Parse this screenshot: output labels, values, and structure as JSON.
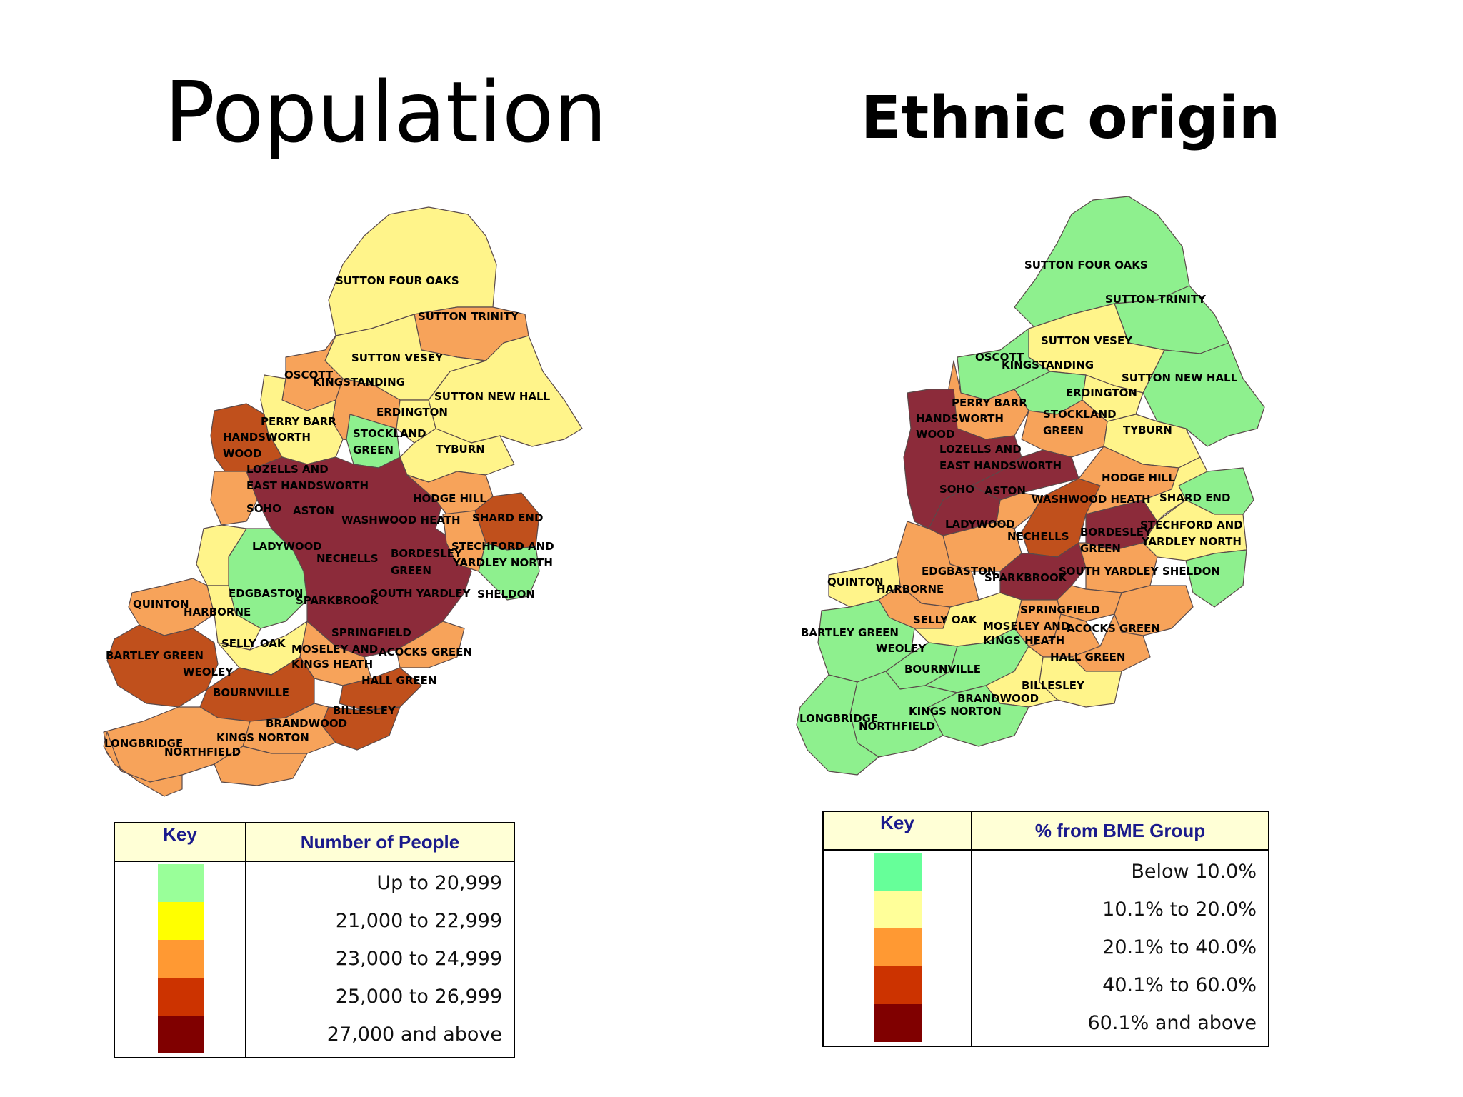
{
  "titles": {
    "left": "Population",
    "right": "Ethnic origin"
  },
  "colors": {
    "green": "#8ef08e",
    "yellow": "#fff48a",
    "orange": "#f7a35a",
    "red": "#c0501c",
    "maroon": "#8c2b3a",
    "label_ink": "#000000",
    "legend_header_bg": "#ffffd6",
    "legend_header_ink": "#1a1a8c"
  },
  "population_map": {
    "labels": {
      "sutton_four_oaks": "SUTTON FOUR OAKS",
      "sutton_trinity": "SUTTON TRINITY",
      "sutton_vesey": "SUTTON VESEY",
      "oscott": "OSCOTT",
      "kingstanding": "KINGSTANDING",
      "sutton_new_hall": "SUTTON NEW HALL",
      "erdington": "ERDINGTON",
      "perry_barr": "PERRY BARR",
      "handsworth": "HANDSWORTH",
      "wood": "WOOD",
      "stockland": "STOCKLAND",
      "green": "GREEN",
      "tyburn": "TYBURN",
      "lozells_and": "LOZELLS AND",
      "east_handsworth": "EAST HANDSWORTH",
      "hodge_hill": "HODGE HILL",
      "soho": "SOHO",
      "aston": "ASTON",
      "washwood_heath": "WASHWOOD HEATH",
      "shard_end": "SHARD END",
      "stechford_and": "STECHFORD AND",
      "ladywood": "LADYWOOD",
      "nechells": "NECHELLS",
      "bordesley": "BORDESLEY",
      "bordesley_green": "GREEN",
      "yardley_north": "YARDLEY NORTH",
      "edgbaston": "EDGBASTON",
      "south_yardley": "SOUTH YARDLEY",
      "sheldon": "SHELDON",
      "sparkbrook": "SPARKBROOK",
      "quinton": "QUINTON",
      "harborne": "HARBORNE",
      "springfield": "SPRINGFIELD",
      "selly_oak": "SELLY OAK",
      "moseley_and": "MOSELEY AND",
      "acocks_green": "ACOCKS GREEN",
      "bartley_green": "BARTLEY GREEN",
      "kings_heath": "KINGS HEATH",
      "weoley": "WEOLEY",
      "hall_green": "HALL GREEN",
      "bournville": "BOURNVILLE",
      "billesley": "BILLESLEY",
      "brandwood": "BRANDWOOD",
      "longbridge": "LONGBRIDGE",
      "kings_norton": "KINGS NORTON",
      "northfield": "NORTHFIELD"
    },
    "legend": {
      "key_header": "Key",
      "value_header": "Number of People",
      "rows": [
        {
          "label": "Up to 20,999",
          "color": "#99ff99"
        },
        {
          "label": "21,000 to 22,999",
          "color": "#ffff00"
        },
        {
          "label": "23,000 to 24,999",
          "color": "#ff9933"
        },
        {
          "label": "25,000 to 26,999",
          "color": "#cc3300"
        },
        {
          "label": "27,000 and above",
          "color": "#800000"
        }
      ]
    }
  },
  "ethnic_map": {
    "labels": {
      "sutton_four_oaks": "SUTTON FOUR OAKS",
      "sutton_trinity": "SUTTON TRINITY",
      "sutton_vesey": "SUTTON VESEY",
      "oscott": "OSCOTT",
      "kingstanding": "KINGSTANDING",
      "sutton_new_hall": "SUTTON NEW HALL",
      "erdington": "ERDINGTON",
      "perry_barr": "PERRY BARR",
      "handsworth": "HANDSWORTH",
      "wood": "WOOD",
      "stockland": "STOCKLAND",
      "green": "GREEN",
      "tyburn": "TYBURN",
      "lozells_and": "LOZELLS AND",
      "east_handsworth": "EAST HANDSWORTH",
      "hodge_hill": "HODGE HILL",
      "soho": "SOHO",
      "aston": "ASTON",
      "washwood_heath": "WASHWOOD HEATH",
      "shard_end": "SHARD END",
      "stechford_and": "STECHFORD AND",
      "ladywood": "LADYWOOD",
      "nechells": "NECHELLS",
      "bordesley": "BORDESLEY",
      "bordesley_green": "GREEN",
      "yardley_north": "YARDLEY NORTH",
      "edgbaston": "EDGBASTON",
      "south_yardley": "SOUTH YARDLEY",
      "sheldon": "SHELDON",
      "sparkbrook": "SPARKBROOK",
      "quinton": "QUINTON",
      "harborne": "HARBORNE",
      "springfield": "SPRINGFIELD",
      "selly_oak": "SELLY OAK",
      "moseley_and": "MOSELEY AND",
      "acocks_green": "ACOCKS GREEN",
      "bartley_green": "BARTLEY GREEN",
      "kings_heath": "KINGS HEATH",
      "weoley": "WEOLEY",
      "hall_green": "HALL GREEN",
      "bournville": "BOURNVILLE",
      "billesley": "BILLESLEY",
      "brandwood": "BRANDWOOD",
      "longbridge": "LONGBRIDGE",
      "kings_norton": "KINGS NORTON",
      "northfield": "NORTHFIELD"
    },
    "legend": {
      "key_header": "Key",
      "value_header": "% from BME Group",
      "rows": [
        {
          "label": "Below 10.0%",
          "color": "#66ff99"
        },
        {
          "label": "10.1% to 20.0%",
          "color": "#ffff99"
        },
        {
          "label": "20.1% to 40.0%",
          "color": "#ff9933"
        },
        {
          "label": "40.1% to 60.0%",
          "color": "#cc3300"
        },
        {
          "label": "60.1% and above",
          "color": "#800000"
        }
      ]
    }
  }
}
